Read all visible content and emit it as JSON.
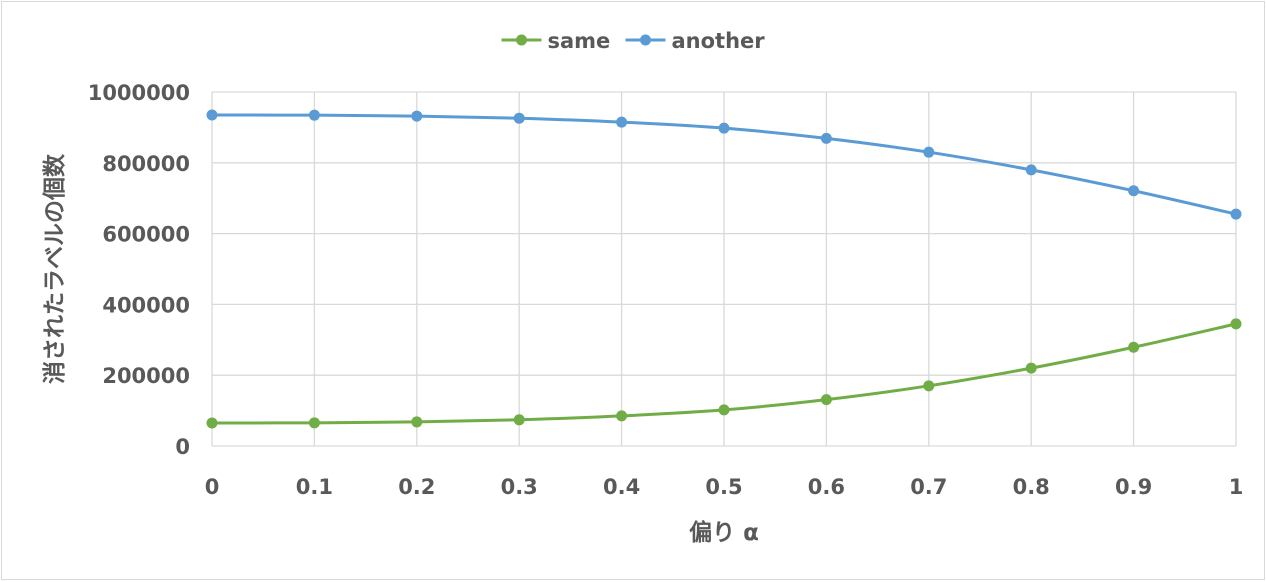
{
  "chart_data": {
    "type": "line",
    "title": "",
    "xlabel": "偏り α",
    "ylabel": "消されたラベルの個数",
    "x": [
      0,
      0.1,
      0.2,
      0.3,
      0.4,
      0.5,
      0.6,
      0.7,
      0.8,
      0.9,
      1
    ],
    "x_tick_labels": [
      "0",
      "0.1",
      "0.2",
      "0.3",
      "0.4",
      "0.5",
      "0.6",
      "0.7",
      "0.8",
      "0.9",
      "1"
    ],
    "ylim": [
      0,
      1000000
    ],
    "y_ticks": [
      0,
      200000,
      400000,
      600000,
      800000,
      1000000
    ],
    "y_tick_labels": [
      "0",
      "200000",
      "400000",
      "600000",
      "800000",
      "1000000"
    ],
    "grid": true,
    "legend_position": "top",
    "series": [
      {
        "name": "same",
        "color": "#70ad47",
        "values": [
          65000,
          65500,
          68000,
          74000,
          85000,
          102000,
          131000,
          170000,
          220000,
          279000,
          345000
        ]
      },
      {
        "name": "another",
        "color": "#5b9bd5",
        "values": [
          935000,
          934500,
          932000,
          926000,
          915000,
          898000,
          869000,
          830000,
          780000,
          721000,
          655000
        ]
      }
    ]
  }
}
